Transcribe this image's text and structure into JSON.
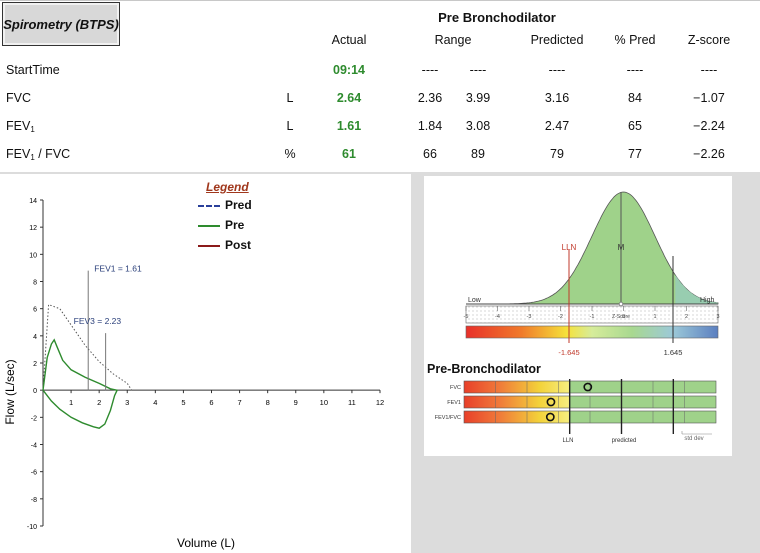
{
  "header": {
    "box_title": "Spirometry (BTPS)",
    "section_title": "Pre Bronchodilator",
    "columns": [
      "Actual",
      "Range",
      "Predicted",
      "% Pred",
      "Z-score"
    ]
  },
  "rows": [
    {
      "label": "StartTime",
      "unit": "",
      "actual": "09:14",
      "range_low": "----",
      "range_high": "----",
      "predicted": "----",
      "pct_pred": "----",
      "zscore": "----"
    },
    {
      "label": "FVC",
      "unit": "L",
      "actual": "2.64",
      "range_low": "2.36",
      "range_high": "3.99",
      "predicted": "3.16",
      "pct_pred": "84",
      "zscore": "−1.07"
    },
    {
      "label_main": "FEV",
      "label_sub": "1",
      "unit": "L",
      "actual": "1.61",
      "range_low": "1.84",
      "range_high": "3.08",
      "predicted": "2.47",
      "pct_pred": "65",
      "zscore": "−2.24"
    },
    {
      "label_main": "FEV",
      "label_sub": "1",
      "label_tail": " / FVC",
      "unit": "%",
      "actual": "61",
      "range_low": "66",
      "range_high": "89",
      "predicted": "79",
      "pct_pred": "77",
      "zscore": "−2.26"
    }
  ],
  "colors": {
    "actual": "#2e8b2e",
    "pred_line": "#2a3f9a",
    "pre_line": "#2e8b2e",
    "post_line": "#8b1a1a",
    "legend_title": "#a0371c"
  },
  "legend": {
    "title": "Legend",
    "items": [
      "Pred",
      "Pre",
      "Post"
    ]
  },
  "chart_data": [
    {
      "type": "line",
      "xlabel": "Volume (L)",
      "ylabel": "Flow  (L/sec)",
      "xlim": [
        0,
        12
      ],
      "ylim": [
        -10,
        14
      ],
      "x_ticks": [
        1,
        2,
        3,
        4,
        5,
        6,
        7,
        8,
        9,
        10,
        11,
        12
      ],
      "y_ticks": [
        -10,
        -8,
        -6,
        -4,
        -2,
        0,
        2,
        4,
        6,
        8,
        10,
        12,
        14
      ],
      "annotations": [
        {
          "text": "FEV1 = 1.61",
          "x": 1.61
        },
        {
          "text": "FEV3 = 2.23",
          "x": 2.23
        }
      ],
      "series": [
        {
          "name": "Pred",
          "style": "dotted",
          "points": [
            [
              0,
              0
            ],
            [
              0.2,
              6.3
            ],
            [
              0.6,
              6.0
            ],
            [
              1.0,
              4.8
            ],
            [
              1.5,
              3.3
            ],
            [
              2.0,
              2.1
            ],
            [
              2.5,
              1.2
            ],
            [
              3.0,
              0.5
            ],
            [
              3.16,
              0
            ]
          ]
        },
        {
          "name": "Pre",
          "style": "solid",
          "points": [
            [
              0,
              0
            ],
            [
              0.15,
              2.4
            ],
            [
              0.3,
              3.4
            ],
            [
              0.4,
              3.7
            ],
            [
              0.5,
              3.2
            ],
            [
              0.7,
              2.2
            ],
            [
              1.0,
              1.5
            ],
            [
              1.5,
              0.95
            ],
            [
              2.0,
              0.5
            ],
            [
              2.4,
              0.1
            ],
            [
              2.64,
              0
            ],
            [
              2.55,
              -0.4
            ],
            [
              2.4,
              -1.5
            ],
            [
              2.2,
              -2.5
            ],
            [
              2.0,
              -2.8
            ],
            [
              1.8,
              -2.7
            ],
            [
              1.4,
              -2.4
            ],
            [
              1.0,
              -2.0
            ],
            [
              0.6,
              -1.4
            ],
            [
              0.3,
              -0.8
            ],
            [
              0,
              0
            ]
          ]
        },
        {
          "name": "Post",
          "points": []
        }
      ]
    },
    {
      "type": "area",
      "title": "",
      "xlabel": "Z-Score",
      "xlim": [
        -5,
        3
      ],
      "x_ticks": [
        "-5",
        "-4",
        "-3",
        "-2",
        "-1",
        "0",
        "1",
        "2",
        "3"
      ],
      "labels": {
        "lln": "LLN",
        "mean": "M",
        "low": "Low",
        "high": "High",
        "lln_value": "-1.645",
        "uln_value": "1.645"
      }
    },
    {
      "type": "scatter",
      "title": "Pre-Bronchodilator",
      "rows": [
        {
          "name": "FVC",
          "zscore": -1.07
        },
        {
          "name": "FEV1",
          "zscore": -2.24
        },
        {
          "name": "FEV1/FVC",
          "zscore": -2.26
        }
      ],
      "footer_labels": [
        "LLN",
        "predicted",
        "std dev"
      ]
    }
  ]
}
